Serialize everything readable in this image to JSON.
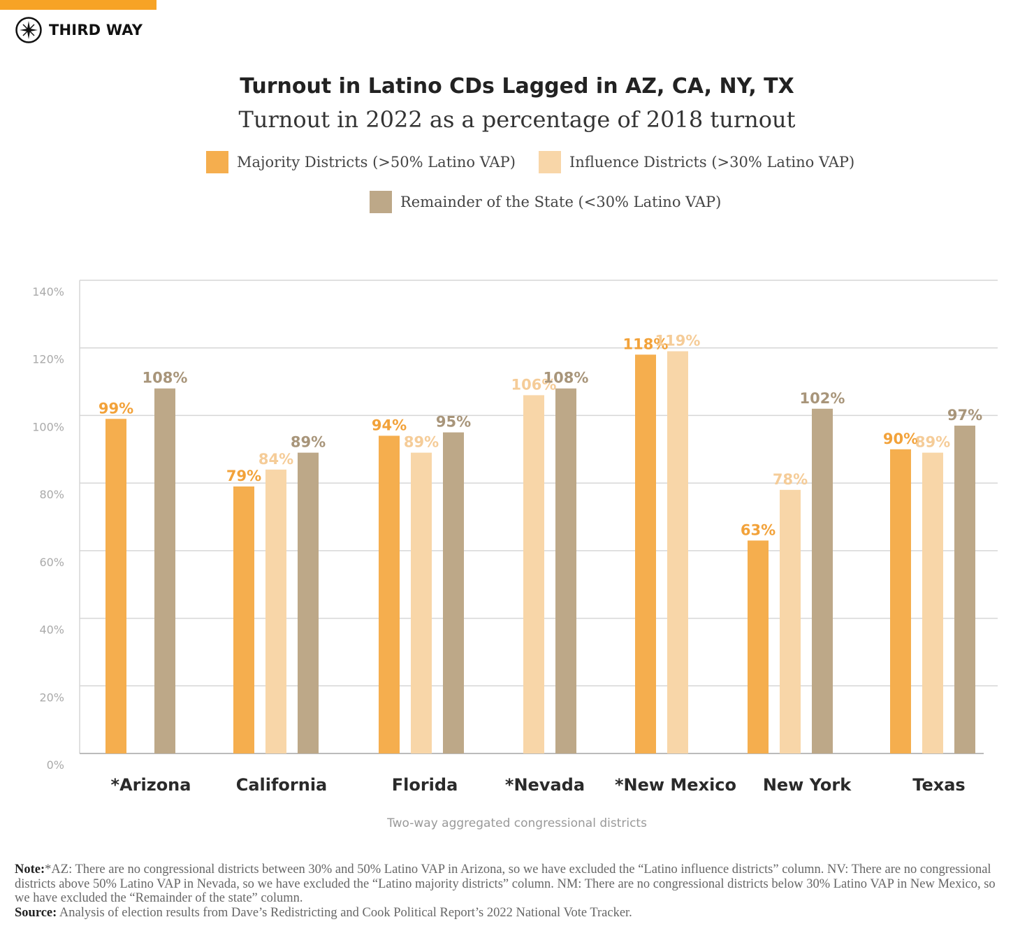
{
  "header": {
    "logo_text": "THIRD WAY"
  },
  "chart_data": {
    "type": "bar",
    "title": "Turnout in Latino CDs Lagged in AZ, CA, NY, TX",
    "subtitle": "Turnout in 2022 as a percentage of 2018 turnout",
    "xlabel": "Two-way aggregated congressional districts",
    "ylabel": "",
    "ylim": [
      0,
      140
    ],
    "yticks": [
      "0%",
      "20%",
      "40%",
      "60%",
      "80%",
      "100%",
      "120%",
      "140%"
    ],
    "grid": true,
    "legend_position": "top",
    "categories": [
      "*Arizona",
      "California",
      "Florida",
      "*Nevada",
      "*New Mexico",
      "New York",
      "Texas"
    ],
    "series": [
      {
        "name": "Majority Districts (>50% Latino VAP)",
        "color": "#F5AE4E",
        "label_color": "#F2A23A",
        "values": [
          99,
          79,
          94,
          null,
          118,
          63,
          90
        ]
      },
      {
        "name": "Influence Districts (>30% Latino VAP)",
        "color": "#F8D6A8",
        "label_color": "#F5CC98",
        "values": [
          null,
          84,
          89,
          106,
          119,
          78,
          89
        ]
      },
      {
        "name": "Remainder of the State (<30% Latino VAP)",
        "color": "#BDA888",
        "label_color": "#A8957A",
        "values": [
          108,
          89,
          95,
          108,
          null,
          102,
          97
        ]
      }
    ]
  },
  "notes": {
    "note_label": "Note:",
    "note_text": "*AZ: There are no congressional districts between 30% and 50% Latino VAP in Arizona, so we have excluded the “Latino influence districts” column. NV: There are no congressional districts above 50% Latino VAP in Nevada, so we have excluded the “Latino majority districts” column. NM: There are no congressional districts below 30% Latino VAP in New Mexico, so we have excluded the “Remainder of the state” column.",
    "source_label": "Source:",
    "source_text": " Analysis of election results from Dave’s Redistricting and Cook Political Report’s 2022 National Vote Tracker."
  }
}
